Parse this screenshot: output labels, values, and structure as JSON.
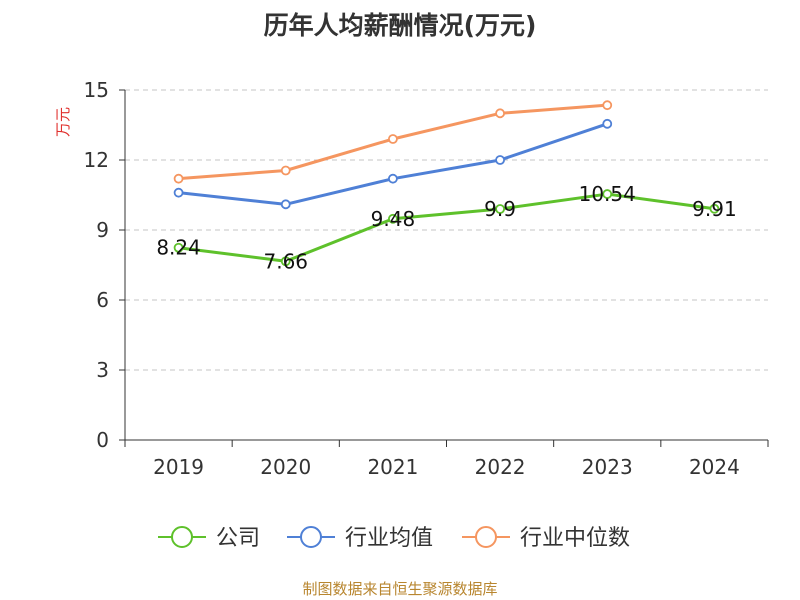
{
  "chart_data": {
    "type": "line",
    "title": "历年人均薪酬情况(万元)",
    "ylabel": "万元",
    "xlabel": "",
    "ylim": [
      0,
      15
    ],
    "yticks": [
      0,
      3,
      6,
      9,
      12,
      15
    ],
    "grid": true,
    "legend_position": "bottom",
    "categories": [
      "2019",
      "2020",
      "2021",
      "2022",
      "2023",
      "2024"
    ],
    "series": [
      {
        "name": "公司",
        "color": "#5ec12b",
        "labeled": true,
        "values": [
          8.24,
          7.66,
          9.48,
          9.9,
          10.54,
          9.91
        ]
      },
      {
        "name": "行业均值",
        "color": "#4f80d6",
        "labeled": false,
        "values": [
          10.6,
          10.1,
          11.2,
          12.0,
          13.55,
          null
        ]
      },
      {
        "name": "行业中位数",
        "color": "#f59660",
        "labeled": false,
        "values": [
          11.2,
          11.55,
          12.9,
          14.0,
          14.35,
          null
        ]
      }
    ]
  },
  "source": "制图数据来自恒生聚源数据库"
}
